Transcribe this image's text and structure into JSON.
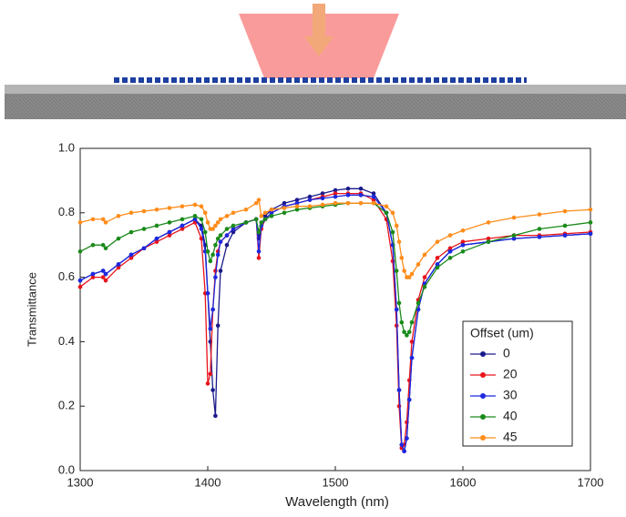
{
  "chart_data": {
    "type": "line",
    "xlabel": "Wavelength (nm)",
    "ylabel": "Transmittance",
    "legend_title": "Offset (um)",
    "legend_position": "lower right",
    "x": [
      1300,
      1310,
      1318,
      1320,
      1330,
      1340,
      1350,
      1360,
      1370,
      1380,
      1390,
      1395,
      1398,
      1400,
      1402,
      1404,
      1406,
      1408,
      1410,
      1415,
      1420,
      1430,
      1438,
      1440,
      1442,
      1445,
      1450,
      1460,
      1470,
      1480,
      1490,
      1500,
      1510,
      1520,
      1530,
      1540,
      1545,
      1548,
      1550,
      1552,
      1554,
      1556,
      1558,
      1560,
      1565,
      1570,
      1580,
      1590,
      1600,
      1620,
      1640,
      1660,
      1680,
      1700
    ],
    "series": [
      {
        "name": "0",
        "color": "#1a1a8c",
        "values": [
          0.59,
          0.61,
          0.62,
          0.61,
          0.64,
          0.67,
          0.69,
          0.72,
          0.74,
          0.76,
          0.78,
          0.76,
          0.7,
          0.55,
          0.4,
          0.25,
          0.17,
          0.45,
          0.62,
          0.7,
          0.74,
          0.77,
          0.78,
          0.72,
          0.76,
          0.79,
          0.81,
          0.83,
          0.84,
          0.85,
          0.86,
          0.87,
          0.875,
          0.875,
          0.86,
          0.8,
          0.7,
          0.5,
          0.25,
          0.08,
          0.06,
          0.1,
          0.22,
          0.35,
          0.5,
          0.58,
          0.64,
          0.68,
          0.7,
          0.71,
          0.72,
          0.725,
          0.73,
          0.735
        ]
      },
      {
        "name": "20",
        "color": "#e8141c",
        "values": [
          0.57,
          0.6,
          0.6,
          0.59,
          0.63,
          0.66,
          0.69,
          0.71,
          0.73,
          0.75,
          0.77,
          0.72,
          0.55,
          0.27,
          0.3,
          0.5,
          0.62,
          0.68,
          0.71,
          0.73,
          0.75,
          0.77,
          0.78,
          0.66,
          0.75,
          0.78,
          0.8,
          0.82,
          0.83,
          0.84,
          0.85,
          0.86,
          0.86,
          0.86,
          0.84,
          0.78,
          0.65,
          0.45,
          0.2,
          0.07,
          0.08,
          0.15,
          0.28,
          0.4,
          0.53,
          0.6,
          0.66,
          0.69,
          0.71,
          0.72,
          0.73,
          0.73,
          0.735,
          0.74
        ]
      },
      {
        "name": "30",
        "color": "#1c28e0",
        "values": [
          0.59,
          0.61,
          0.62,
          0.61,
          0.64,
          0.67,
          0.69,
          0.72,
          0.74,
          0.76,
          0.78,
          0.75,
          0.68,
          0.55,
          0.44,
          0.5,
          0.6,
          0.67,
          0.71,
          0.73,
          0.75,
          0.77,
          0.78,
          0.68,
          0.76,
          0.78,
          0.8,
          0.82,
          0.83,
          0.84,
          0.845,
          0.85,
          0.855,
          0.855,
          0.85,
          0.8,
          0.7,
          0.5,
          0.25,
          0.08,
          0.06,
          0.1,
          0.22,
          0.35,
          0.5,
          0.58,
          0.64,
          0.68,
          0.7,
          0.71,
          0.72,
          0.725,
          0.73,
          0.735
        ]
      },
      {
        "name": "40",
        "color": "#1a8a1a",
        "values": [
          0.68,
          0.7,
          0.7,
          0.69,
          0.72,
          0.74,
          0.75,
          0.76,
          0.77,
          0.78,
          0.79,
          0.78,
          0.74,
          0.68,
          0.65,
          0.67,
          0.7,
          0.72,
          0.73,
          0.75,
          0.76,
          0.77,
          0.78,
          0.74,
          0.77,
          0.78,
          0.79,
          0.8,
          0.81,
          0.815,
          0.82,
          0.825,
          0.83,
          0.83,
          0.83,
          0.8,
          0.74,
          0.62,
          0.52,
          0.46,
          0.43,
          0.42,
          0.43,
          0.46,
          0.52,
          0.57,
          0.63,
          0.66,
          0.68,
          0.71,
          0.73,
          0.75,
          0.76,
          0.77
        ]
      },
      {
        "name": "45",
        "color": "#ff8c1a",
        "values": [
          0.77,
          0.78,
          0.78,
          0.77,
          0.79,
          0.8,
          0.805,
          0.81,
          0.815,
          0.82,
          0.825,
          0.82,
          0.8,
          0.77,
          0.75,
          0.75,
          0.76,
          0.77,
          0.78,
          0.79,
          0.8,
          0.81,
          0.83,
          0.84,
          0.79,
          0.8,
          0.81,
          0.815,
          0.82,
          0.82,
          0.825,
          0.83,
          0.83,
          0.83,
          0.83,
          0.82,
          0.8,
          0.76,
          0.71,
          0.66,
          0.62,
          0.6,
          0.6,
          0.61,
          0.64,
          0.67,
          0.71,
          0.73,
          0.745,
          0.77,
          0.785,
          0.795,
          0.805,
          0.81
        ]
      }
    ],
    "xlim": [
      1300,
      1700
    ],
    "xticks": [
      1300,
      1400,
      1500,
      1600,
      1700
    ],
    "ylim": [
      0,
      1
    ],
    "yticks": [
      {
        "value": 0,
        "label": "0.0"
      },
      0.2,
      0.4,
      0.6,
      0.8,
      {
        "value": 1,
        "label": "1.0"
      }
    ],
    "grid": false
  }
}
